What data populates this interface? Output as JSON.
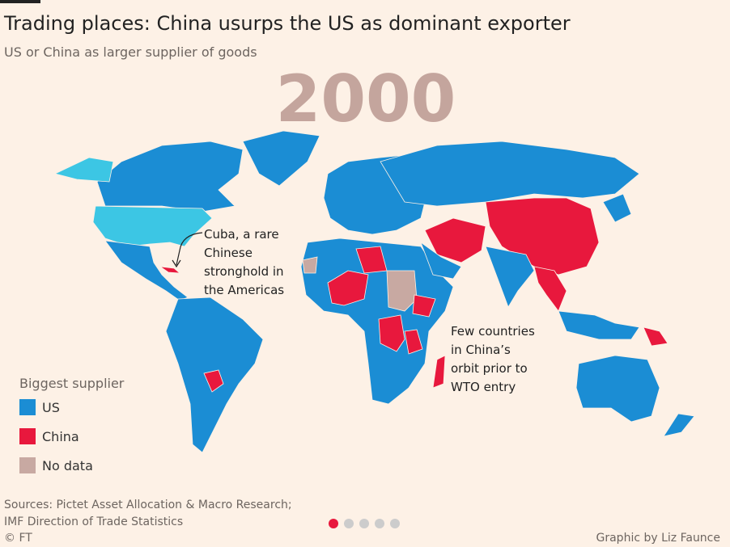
{
  "header": {
    "title": "Trading places: China usurps the US as dominant exporter",
    "subtitle": "US or China as larger supplier of goods",
    "year": "2000"
  },
  "annotations": [
    {
      "lines": [
        "Cuba, a rare",
        "Chinese",
        "stronghold in",
        "the Americas"
      ]
    },
    {
      "lines": [
        "Few countries",
        "in China’s",
        "orbit prior to",
        "WTO entry"
      ]
    }
  ],
  "legend": {
    "title": "Biggest supplier",
    "items": [
      {
        "label": "US",
        "color": "#1b8dd4"
      },
      {
        "label": "China",
        "color": "#e8183d"
      },
      {
        "label": "No data",
        "color": "#c8a9a2"
      }
    ]
  },
  "footer": {
    "sources": [
      "Sources: Pictet Asset Allocation & Macro Research;",
      "IMF Direction of Trade Statistics"
    ],
    "copyright": "© FT",
    "credit": "Graphic by Liz Faunce"
  }
}
